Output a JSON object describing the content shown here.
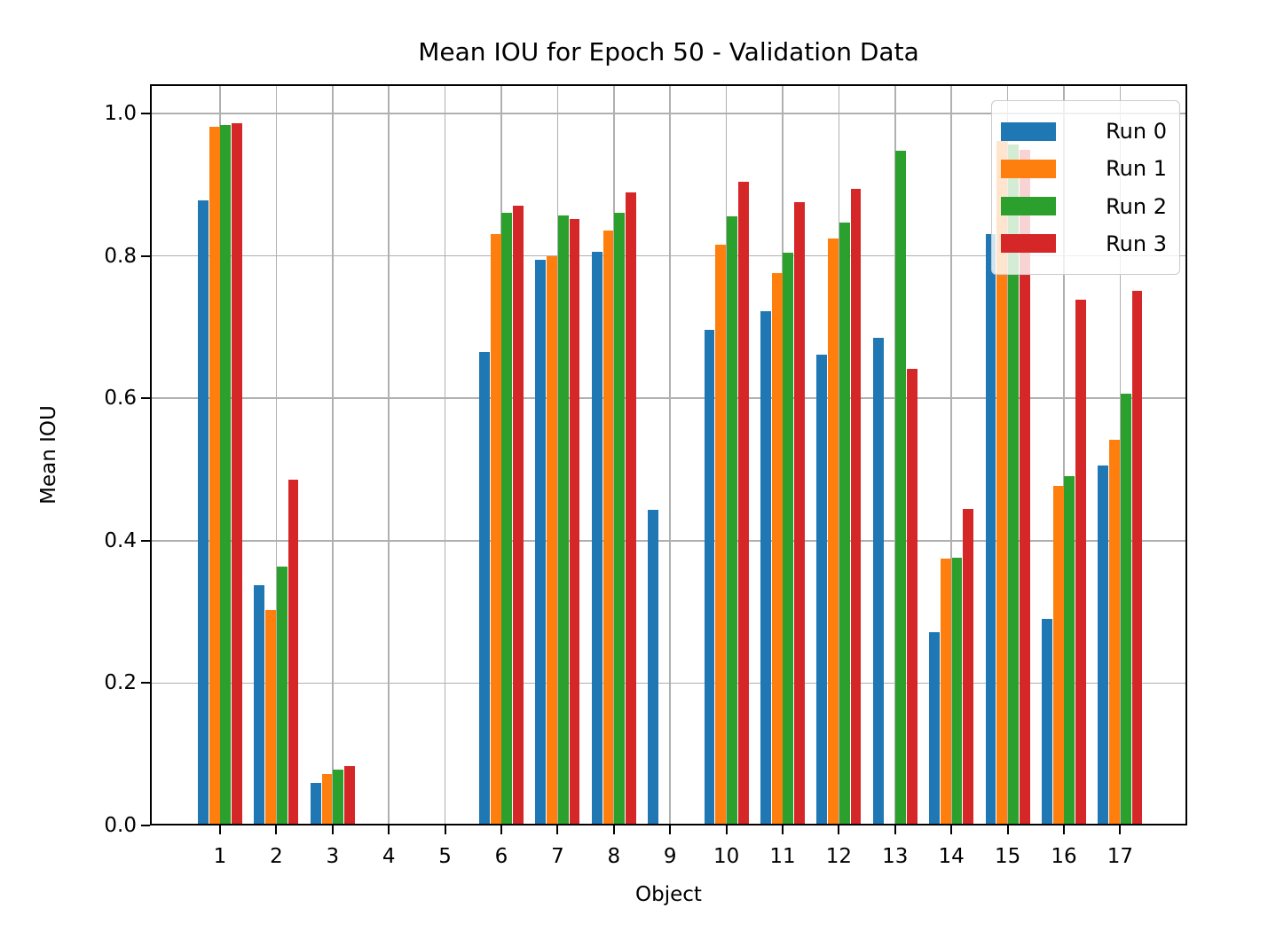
{
  "chart_data": {
    "type": "bar",
    "title": "Mean IOU for Epoch 50 - Validation Data",
    "xlabel": "Object",
    "ylabel": "Mean IOU",
    "categories": [
      "1",
      "2",
      "3",
      "4",
      "5",
      "6",
      "7",
      "8",
      "9",
      "10",
      "11",
      "12",
      "13",
      "14",
      "15",
      "16",
      "17"
    ],
    "ytick_labels": [
      "0.0",
      "0.2",
      "0.4",
      "0.6",
      "0.8",
      "1.0"
    ],
    "ylim": [
      0.0,
      1.041
    ],
    "grid": true,
    "legend_position": "upper right",
    "series": [
      {
        "name": "Run 0",
        "color": "#1f77b4",
        "values": [
          0.878,
          0.338,
          0.06,
          0,
          0,
          0.665,
          0.795,
          0.806,
          0.443,
          0.696,
          0.722,
          0.661,
          0.685,
          0.272,
          0.831,
          0.29,
          0.506
        ]
      },
      {
        "name": "Run 1",
        "color": "#ff7f0e",
        "values": [
          0.981,
          0.303,
          0.072,
          0,
          0,
          0.831,
          0.799,
          0.836,
          0,
          0.816,
          0.776,
          0.825,
          0,
          0.375,
          0.962,
          0.477,
          0.542
        ]
      },
      {
        "name": "Run 2",
        "color": "#2ca02c",
        "values": [
          0.984,
          0.364,
          0.078,
          0,
          0,
          0.86,
          0.857,
          0.861,
          0,
          0.855,
          0.805,
          0.847,
          0.948,
          0.376,
          0.956,
          0.491,
          0.607
        ]
      },
      {
        "name": "Run 3",
        "color": "#d62728",
        "values": [
          0.986,
          0.486,
          0.084,
          0,
          0,
          0.87,
          0.852,
          0.889,
          0,
          0.904,
          0.875,
          0.894,
          0.641,
          0.445,
          0.949,
          0.739,
          0.751
        ]
      }
    ],
    "colors": {
      "grid": "#b0b0b0",
      "spine": "#000000",
      "text": "#000000"
    }
  }
}
